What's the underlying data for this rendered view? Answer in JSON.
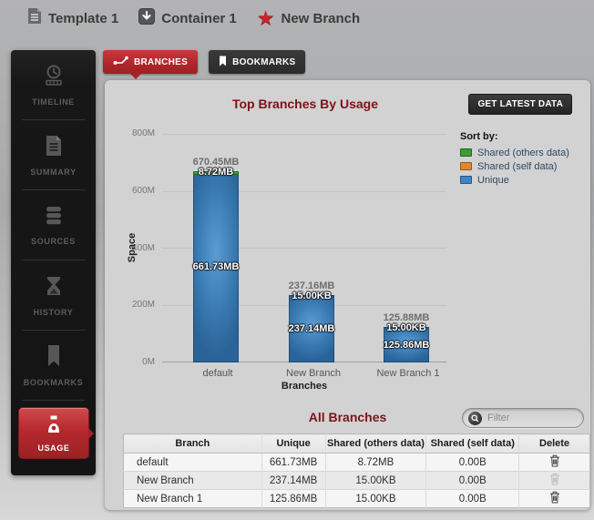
{
  "breadcrumb": {
    "items": [
      {
        "icon": "template-icon",
        "label": "Template 1"
      },
      {
        "icon": "container-icon",
        "label": "Container 1"
      },
      {
        "icon": "star-icon",
        "label": "New Branch"
      }
    ]
  },
  "sidebar": {
    "items": [
      {
        "id": "timeline",
        "label": "TIMELINE"
      },
      {
        "id": "summary",
        "label": "SUMMARY"
      },
      {
        "id": "sources",
        "label": "SOURCES"
      },
      {
        "id": "history",
        "label": "HISTORY"
      },
      {
        "id": "bookmarks",
        "label": "BOOKMARKS"
      },
      {
        "id": "usage",
        "label": "USAGE",
        "active": true
      }
    ]
  },
  "tabs": [
    {
      "label": "BRANCHES",
      "active": true
    },
    {
      "label": "BOOKMARKS",
      "active": false
    }
  ],
  "panel": {
    "title": "Top Branches By Usage",
    "get_latest_button": "GET LATEST DATA",
    "all_branches_title": "All Branches",
    "filter_placeholder": "Filter"
  },
  "chart_data": {
    "type": "bar",
    "stacked": true,
    "title": "Top Branches By Usage",
    "xlabel": "Branches",
    "ylabel": "Space",
    "ylim_mb": [
      0,
      800
    ],
    "ytick_labels": [
      "800M",
      "600M",
      "400M",
      "200M",
      "0M"
    ],
    "grid": true,
    "legend_position": "right",
    "categories": [
      "default",
      "New Branch",
      "New Branch 1"
    ],
    "series": [
      {
        "name": "Shared (others data)",
        "color": "#3f9c35",
        "values_mb": [
          8.72,
          0.015,
          0.015
        ]
      },
      {
        "name": "Shared (self data)",
        "color": "#e0892c",
        "values_mb": [
          0,
          0,
          0
        ]
      },
      {
        "name": "Unique",
        "color": "#3d86c6",
        "values_mb": [
          661.73,
          237.14,
          125.86
        ]
      }
    ],
    "legend": {
      "title": "Sort by:",
      "entries": [
        {
          "label": "Shared (others data)",
          "color": "#3f9c35"
        },
        {
          "label": "Shared (self data)",
          "color": "#e0892c"
        },
        {
          "label": "Unique",
          "color": "#3d86c6"
        }
      ]
    },
    "bars": [
      {
        "category": "default",
        "total_mb": 670.45,
        "shared_others_mb": 8.72,
        "total_label": "670.45MB",
        "shared_others_label": "8.72MB",
        "unique_label": "661.73MB"
      },
      {
        "category": "New Branch",
        "total_mb": 237.16,
        "shared_others_mb": 0.015,
        "total_label": "237.16MB",
        "shared_others_label": "15.00KB",
        "unique_label": "237.14MB"
      },
      {
        "category": "New Branch 1",
        "total_mb": 125.88,
        "shared_others_mb": 0.015,
        "total_label": "125.88MB",
        "shared_others_label": "15.00KB",
        "unique_label": "125.86MB"
      }
    ]
  },
  "table": {
    "headers": [
      "Branch",
      "Unique",
      "Shared (others data)",
      "Shared (self data)",
      "Delete"
    ],
    "rows": [
      {
        "branch": "default",
        "unique": "661.73MB",
        "shared_others": "8.72MB",
        "shared_self": "0.00B",
        "delete_enabled": true
      },
      {
        "branch": "New Branch",
        "unique": "237.14MB",
        "shared_others": "15.00KB",
        "shared_self": "0.00B",
        "delete_enabled": false
      },
      {
        "branch": "New Branch 1",
        "unique": "125.86MB",
        "shared_others": "15.00KB",
        "shared_self": "0.00B",
        "delete_enabled": true
      }
    ]
  }
}
